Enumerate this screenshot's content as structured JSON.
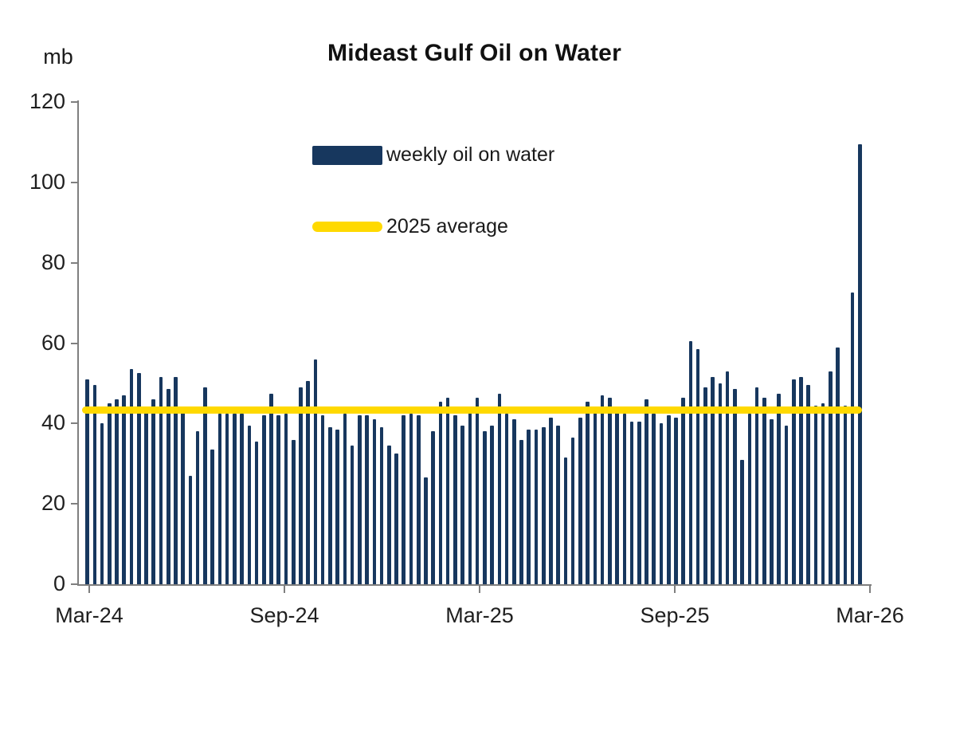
{
  "page": {
    "background": "#ffffff"
  },
  "chart_data": {
    "type": "bar",
    "title": "Mideast Gulf Oil on Water",
    "unit_label": "mb",
    "xlabel": "",
    "ylabel": "mb",
    "ylim": [
      0,
      120
    ],
    "y_ticks": [
      120,
      100,
      80,
      60,
      40,
      20,
      0
    ],
    "x_tick_labels": [
      "Mar-24",
      "Sep-24",
      "Mar-25",
      "Sep-25",
      "Mar-26"
    ],
    "grid": false,
    "legend_position": "upper-center-inside",
    "series_name": "weekly oil on water",
    "frequency": "weekly",
    "x_start": "Mar-24",
    "x_end": "Mar-26",
    "values": [
      51,
      49.5,
      40,
      45,
      46,
      47,
      53.5,
      52.5,
      44,
      46,
      51.5,
      48.5,
      51.5,
      43,
      27,
      38,
      49,
      33.5,
      42.5,
      42.5,
      42.5,
      42.5,
      39.5,
      35.5,
      42,
      47.5,
      42,
      42.5,
      36,
      49,
      50.5,
      56,
      42,
      39,
      38.5,
      42.5,
      34.5,
      42,
      42,
      41,
      39,
      34.5,
      32.5,
      42,
      42.5,
      42,
      26.5,
      38,
      45.5,
      46.5,
      42,
      39.5,
      43,
      46.5,
      38,
      39.5,
      47.5,
      42.5,
      41,
      36,
      38.5,
      38.5,
      39,
      41.5,
      39.5,
      31.5,
      36.5,
      41.5,
      45.5,
      43.5,
      47,
      46.5,
      43.5,
      42.5,
      40.5,
      40.5,
      46,
      42.5,
      40,
      42,
      41.5,
      46.5,
      60.5,
      58.5,
      49,
      51.5,
      50,
      53,
      48.5,
      31,
      42.5,
      49,
      46.5,
      41,
      47.5,
      39.5,
      51,
      51.5,
      49.5,
      44.5,
      45,
      53,
      59,
      44.5,
      72.5,
      109.5
    ],
    "average_line": {
      "label": "2025 average",
      "value": 43.3
    },
    "legend": [
      {
        "label": "weekly oil on water",
        "type": "bar",
        "color": "#17375e"
      },
      {
        "label": "2025 average",
        "type": "line",
        "color": "#ffd900"
      }
    ],
    "colors": {
      "bar": "#17375e",
      "average_line": "#ffd900",
      "axis": "#7f7f7f",
      "text": "#1f1f1f"
    }
  }
}
